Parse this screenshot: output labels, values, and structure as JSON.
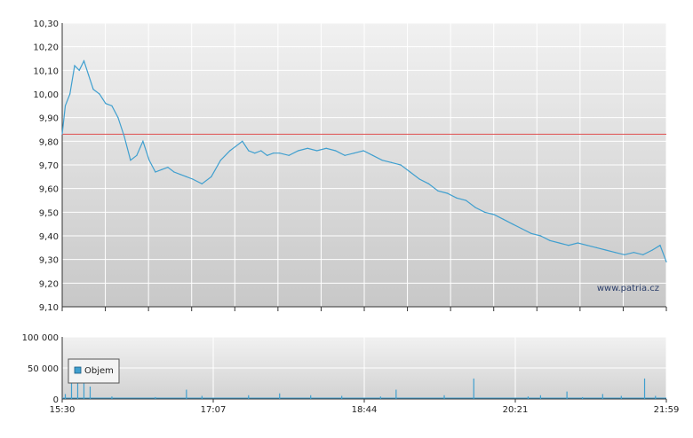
{
  "chart_data": [
    {
      "type": "line",
      "name": "price",
      "x_tick_labels": [
        "15:30",
        "17:07",
        "18:44",
        "20:21",
        "21:59"
      ],
      "y_tick_labels": [
        "9,10",
        "9,20",
        "9,30",
        "9,40",
        "9,50",
        "9,60",
        "9,70",
        "9,80",
        "9,90",
        "10,00",
        "10,10",
        "10,20",
        "10,30"
      ],
      "ylim": [
        9.1,
        10.3
      ],
      "reference_line": 9.83,
      "watermark": "www.patria.cz",
      "colors": {
        "line": "#3f9fcf",
        "reference": "#e05050",
        "grid": "#ffffff"
      },
      "x": [
        "15:30",
        "15:32",
        "15:35",
        "15:38",
        "15:41",
        "15:44",
        "15:47",
        "15:50",
        "15:54",
        "15:58",
        "16:02",
        "16:06",
        "16:10",
        "16:14",
        "16:18",
        "16:22",
        "16:26",
        "16:30",
        "16:34",
        "16:38",
        "16:42",
        "16:46",
        "16:50",
        "16:54",
        "17:00",
        "17:06",
        "17:12",
        "17:18",
        "17:22",
        "17:26",
        "17:30",
        "17:34",
        "17:38",
        "17:42",
        "17:46",
        "17:50",
        "17:56",
        "18:02",
        "18:08",
        "18:14",
        "18:20",
        "18:26",
        "18:32",
        "18:38",
        "18:44",
        "18:50",
        "18:56",
        "19:02",
        "19:08",
        "19:14",
        "19:20",
        "19:26",
        "19:32",
        "19:38",
        "19:44",
        "19:50",
        "19:56",
        "20:02",
        "20:08",
        "20:14",
        "20:20",
        "20:26",
        "20:32",
        "20:38",
        "20:44",
        "20:50",
        "20:56",
        "21:02",
        "21:08",
        "21:14",
        "21:20",
        "21:26",
        "21:32",
        "21:38",
        "21:44",
        "21:50",
        "21:55",
        "21:59"
      ],
      "values": [
        9.83,
        9.95,
        10.0,
        10.12,
        10.1,
        10.14,
        10.08,
        10.02,
        10.0,
        9.96,
        9.95,
        9.9,
        9.82,
        9.72,
        9.74,
        9.8,
        9.72,
        9.67,
        9.68,
        9.69,
        9.67,
        9.66,
        9.65,
        9.64,
        9.62,
        9.65,
        9.72,
        9.76,
        9.78,
        9.8,
        9.76,
        9.75,
        9.76,
        9.74,
        9.75,
        9.75,
        9.74,
        9.76,
        9.77,
        9.76,
        9.77,
        9.76,
        9.74,
        9.75,
        9.76,
        9.74,
        9.72,
        9.71,
        9.7,
        9.67,
        9.64,
        9.62,
        9.59,
        9.58,
        9.56,
        9.55,
        9.52,
        9.5,
        9.49,
        9.47,
        9.45,
        9.43,
        9.41,
        9.4,
        9.38,
        9.37,
        9.36,
        9.37,
        9.36,
        9.35,
        9.34,
        9.33,
        9.32,
        9.33,
        9.32,
        9.34,
        9.36,
        9.29
      ]
    },
    {
      "type": "bar",
      "name": "volume",
      "legend": "Objem",
      "x_tick_labels": [
        "15:30",
        "17:07",
        "18:44",
        "20:21",
        "21:59"
      ],
      "y_tick_labels": [
        "0",
        "50 000",
        "100 000"
      ],
      "ylim": [
        0,
        100000
      ],
      "colors": {
        "bar": "#3f9fcf"
      },
      "x": [
        "15:32",
        "15:36",
        "15:40",
        "15:44",
        "15:48",
        "16:02",
        "16:30",
        "16:50",
        "17:00",
        "17:30",
        "17:50",
        "18:10",
        "18:30",
        "18:55",
        "19:05",
        "19:36",
        "19:55",
        "20:30",
        "20:38",
        "20:55",
        "21:05",
        "21:18",
        "21:30",
        "21:45",
        "21:52"
      ],
      "values": [
        8000,
        25000,
        35000,
        30000,
        20000,
        4000,
        3000,
        15000,
        5000,
        6000,
        9000,
        6000,
        5000,
        4000,
        15000,
        6000,
        33000,
        4000,
        6000,
        12000,
        3000,
        8000,
        5000,
        33000,
        5000
      ]
    }
  ]
}
